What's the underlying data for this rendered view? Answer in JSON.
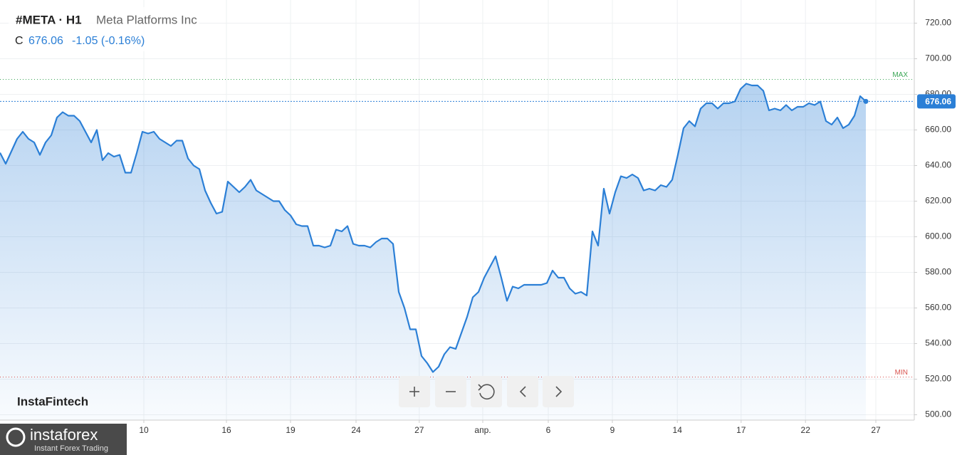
{
  "header": {
    "symbol": "#META · H1",
    "name": "Meta Platforms Inc",
    "close_label": "C",
    "close": "676.06",
    "change": "-1.05 (-0.16%)"
  },
  "brand": {
    "watermark": "InstaFintech",
    "logo": "instaforex",
    "tagline": "Instant Forex Trading"
  },
  "chart_data": {
    "type": "area",
    "color": "#2b7fd6",
    "grid": true,
    "values": [
      647.2,
      641,
      648,
      655,
      659,
      655,
      653,
      646,
      653,
      657,
      667,
      670,
      668,
      668,
      665,
      659,
      653,
      660,
      643,
      647,
      645,
      646,
      636,
      636,
      647,
      659,
      658,
      659,
      655,
      653,
      651,
      654,
      654,
      644,
      640,
      638,
      626,
      619,
      613,
      614,
      631,
      628,
      625,
      628,
      632,
      626,
      624,
      622,
      620,
      620,
      615,
      612,
      607,
      606,
      606,
      595,
      595,
      594,
      595,
      604,
      603,
      606,
      596,
      595,
      595,
      594,
      597,
      599,
      599,
      596,
      569,
      560,
      548,
      548,
      533,
      529,
      524,
      527,
      534,
      538,
      537,
      546,
      555,
      566,
      569,
      577,
      583,
      589,
      577,
      564,
      572,
      571,
      573,
      573,
      573,
      573,
      574,
      581,
      577,
      577,
      571,
      568,
      569,
      567,
      603,
      595,
      627,
      613,
      625,
      634,
      633,
      635,
      633,
      626,
      627,
      626,
      629,
      628,
      632,
      646,
      661,
      665,
      662,
      672,
      675,
      675,
      672,
      675,
      675,
      676,
      683,
      686,
      685,
      685,
      682,
      671,
      672,
      671,
      674,
      671,
      673,
      673,
      675,
      674,
      676,
      665,
      663,
      667,
      661,
      663,
      668,
      679,
      676.06
    ],
    "xlim": [
      0,
      160.5
    ],
    "xticks": [
      {
        "value": 25.25,
        "label": "10"
      },
      {
        "value": 39.75,
        "label": "16"
      },
      {
        "value": 51,
        "label": "19"
      },
      {
        "value": 62.5,
        "label": "24"
      },
      {
        "value": 73.6,
        "label": "27"
      },
      {
        "value": 84.75,
        "label": "апр."
      },
      {
        "value": 96.25,
        "label": "6"
      },
      {
        "value": 107.5,
        "label": "9"
      },
      {
        "value": 118.9,
        "label": "14"
      },
      {
        "value": 130.1,
        "label": "17"
      },
      {
        "value": 141.4,
        "label": "22"
      },
      {
        "value": 153.75,
        "label": "27"
      }
    ],
    "ylim": [
      497,
      733
    ],
    "yticks": [
      {
        "value": 500,
        "label": "500.00"
      },
      {
        "value": 520,
        "label": "520.00"
      },
      {
        "value": 540,
        "label": "540.00"
      },
      {
        "value": 560,
        "label": "560.00"
      },
      {
        "value": 580,
        "label": "580.00"
      },
      {
        "value": 600,
        "label": "600.00"
      },
      {
        "value": 620,
        "label": "620.00"
      },
      {
        "value": 640,
        "label": "640.00"
      },
      {
        "value": 660,
        "label": "660.00"
      },
      {
        "value": 680,
        "label": "680.00"
      },
      {
        "value": 700,
        "label": "700.00"
      },
      {
        "value": 720,
        "label": "720.00"
      }
    ],
    "max_line": {
      "label": "MAX",
      "value": 688.4,
      "color": "#3aa655"
    },
    "min_line": {
      "label": "MIN",
      "value": 521.2,
      "color": "#d9534f"
    }
  }
}
